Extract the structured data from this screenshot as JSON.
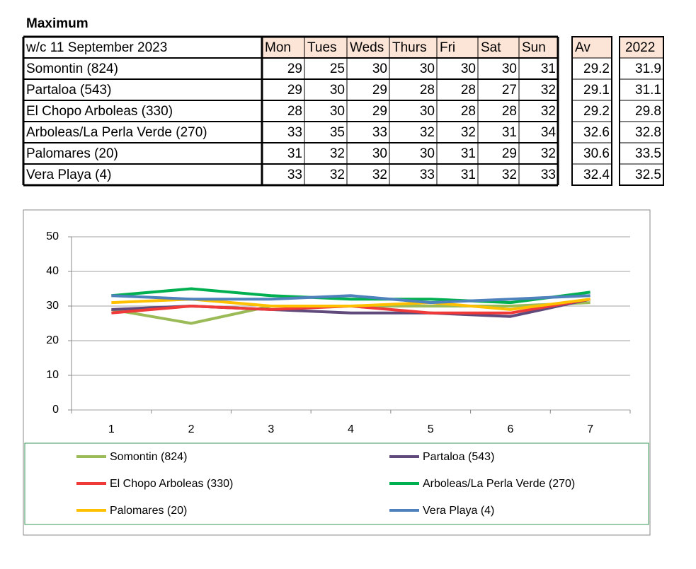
{
  "title": "Maximum",
  "table": {
    "header": [
      "w/c 11 September 2023",
      "Mon",
      "Tues",
      "Weds",
      "Thurs",
      "Fri",
      "Sat",
      "Sun"
    ],
    "extra_header": [
      "Av",
      "2022"
    ],
    "rows": [
      [
        "Somontin (824)",
        29,
        25,
        30,
        30,
        30,
        30,
        31,
        29.2,
        31.9
      ],
      [
        "Partaloa (543)",
        29,
        30,
        29,
        28,
        28,
        27,
        32,
        29.1,
        31.1
      ],
      [
        "El Chopo  Arboleas (330)",
        28,
        30,
        29,
        30,
        28,
        28,
        32,
        29.2,
        29.8
      ],
      [
        "Arboleas/La Perla Verde (270)",
        33,
        35,
        33,
        32,
        32,
        31,
        34,
        32.6,
        32.8
      ],
      [
        "Palomares (20)",
        31,
        32,
        30,
        30,
        31,
        29,
        32,
        30.6,
        33.5
      ],
      [
        "Vera Playa (4)",
        33,
        32,
        32,
        33,
        31,
        32,
        33,
        32.4,
        32.5
      ]
    ]
  },
  "chart_data": {
    "type": "line",
    "categories": [
      "1",
      "2",
      "3",
      "4",
      "5",
      "6",
      "7"
    ],
    "ylim": [
      0,
      50
    ],
    "yticks": [
      0,
      10,
      20,
      30,
      40,
      50
    ],
    "grid": true,
    "legend": "bottom",
    "series": [
      {
        "name": "Somontin (824)",
        "color": "#9bbb59",
        "values": [
          29,
          25,
          30,
          30,
          30,
          30,
          31
        ]
      },
      {
        "name": "Partaloa (543)",
        "color": "#604a7b",
        "values": [
          29,
          30,
          29,
          28,
          28,
          27,
          32
        ]
      },
      {
        "name": "El Chopo  Arboleas (330)",
        "color": "#f03a3a",
        "values": [
          28,
          30,
          29,
          30,
          28,
          28,
          32
        ]
      },
      {
        "name": "Arboleas/La Perla Verde (270)",
        "color": "#00b050",
        "values": [
          33,
          35,
          33,
          32,
          32,
          31,
          34
        ]
      },
      {
        "name": "Palomares (20)",
        "color": "#ffc000",
        "values": [
          31,
          32,
          30,
          30,
          31,
          29,
          32
        ]
      },
      {
        "name": "Vera Playa (4)",
        "color": "#4f81bd",
        "values": [
          33,
          32,
          32,
          33,
          31,
          32,
          33
        ]
      }
    ]
  }
}
